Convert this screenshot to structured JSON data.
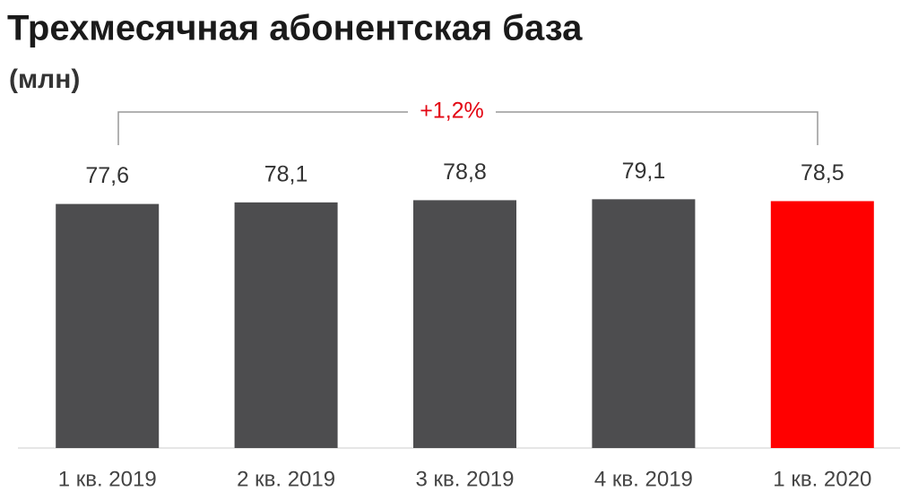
{
  "chart_data": {
    "type": "bar",
    "title": "Трехмесячная абонентская база",
    "subtitle": "(млн)",
    "annotation": "+1,2%",
    "categories": [
      "1 кв. 2019",
      "2 кв. 2019",
      "3 кв. 2019",
      "4 кв. 2019",
      "1 кв. 2020"
    ],
    "values": [
      77.6,
      78.1,
      78.8,
      79.1,
      78.5
    ],
    "value_labels": [
      "77,6",
      "78,1",
      "78,8",
      "79,1",
      "78,5"
    ],
    "colors": [
      "#4d4d4f",
      "#4d4d4f",
      "#4d4d4f",
      "#4d4d4f",
      "#ff0000"
    ],
    "ylim": [
      0,
      100
    ]
  }
}
